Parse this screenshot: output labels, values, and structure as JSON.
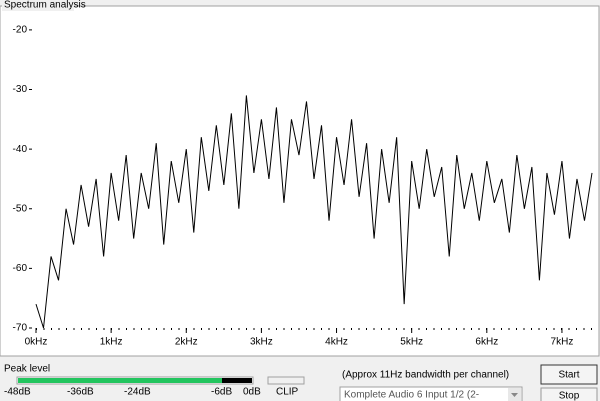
{
  "title": "Spectrum analysis",
  "chart_data": {
    "type": "line",
    "color": "#000000",
    "x": [
      0,
      0.1,
      0.2,
      0.3,
      0.4,
      0.5,
      0.6,
      0.7,
      0.8,
      0.9,
      1,
      1.1,
      1.2,
      1.3,
      1.4,
      1.5,
      1.6,
      1.7,
      1.8,
      1.9,
      2,
      2.1,
      2.2,
      2.3,
      2.4,
      2.5,
      2.6,
      2.7,
      2.8,
      2.9,
      3,
      3.1,
      3.2,
      3.3,
      3.4,
      3.5,
      3.6,
      3.7,
      3.8,
      3.9,
      4,
      4.1,
      4.2,
      4.3,
      4.4,
      4.5,
      4.6,
      4.7,
      4.8,
      4.9,
      5,
      5.1,
      5.2,
      5.3,
      5.4,
      5.5,
      5.6,
      5.7,
      5.8,
      5.9,
      6,
      6.1,
      6.2,
      6.3,
      6.4,
      6.5,
      6.6,
      6.7,
      6.8,
      6.9,
      7,
      7.1,
      7.2,
      7.3,
      7.4
    ],
    "values": [
      -66,
      -70,
      -58,
      -62,
      -50,
      -56,
      -46,
      -53,
      -45,
      -58,
      -44,
      -52,
      -41,
      -55,
      -44,
      -50,
      -39,
      -56,
      -42,
      -49,
      -40,
      -54,
      -38,
      -47,
      -36,
      -46,
      -34,
      -50,
      -31,
      -44,
      -35,
      -45,
      -33,
      -49,
      -35,
      -41,
      -32,
      -45,
      -36,
      -52,
      -38,
      -46,
      -35,
      -48,
      -39,
      -55,
      -40,
      -49,
      -38,
      -66,
      -42,
      -50,
      -40,
      -48,
      -43,
      -58,
      -41,
      -50,
      -44,
      -52,
      -42,
      -49,
      -45,
      -54,
      -41,
      -50,
      -43,
      -62,
      -44,
      -51,
      -42,
      -55,
      -45,
      -52,
      -44
    ],
    "xlim": [
      0,
      7.4
    ],
    "ylim": [
      -70,
      -17
    ],
    "xticks": [
      {
        "value": 0,
        "label": "0kHz"
      },
      {
        "value": 1,
        "label": "1kHz"
      },
      {
        "value": 2,
        "label": "2kHz"
      },
      {
        "value": 3,
        "label": "3kHz"
      },
      {
        "value": 4,
        "label": "4kHz"
      },
      {
        "value": 5,
        "label": "5kHz"
      },
      {
        "value": 6,
        "label": "6kHz"
      },
      {
        "value": 7,
        "label": "7kHz"
      }
    ],
    "yticks": [
      -20,
      -30,
      -40,
      -50,
      -60,
      -70
    ]
  },
  "peak_level": {
    "title": "Peak level",
    "scale_labels": [
      "-48dB",
      "-36dB",
      "-24dB",
      "-6dB",
      "0dB"
    ],
    "clip_label": "CLIP"
  },
  "bandwidth_note": "(Approx 11Hz bandwidth per channel)",
  "input_device": "Komplete Audio 6 Input 1/2 (2-",
  "buttons": [
    "Start",
    "Stop"
  ]
}
